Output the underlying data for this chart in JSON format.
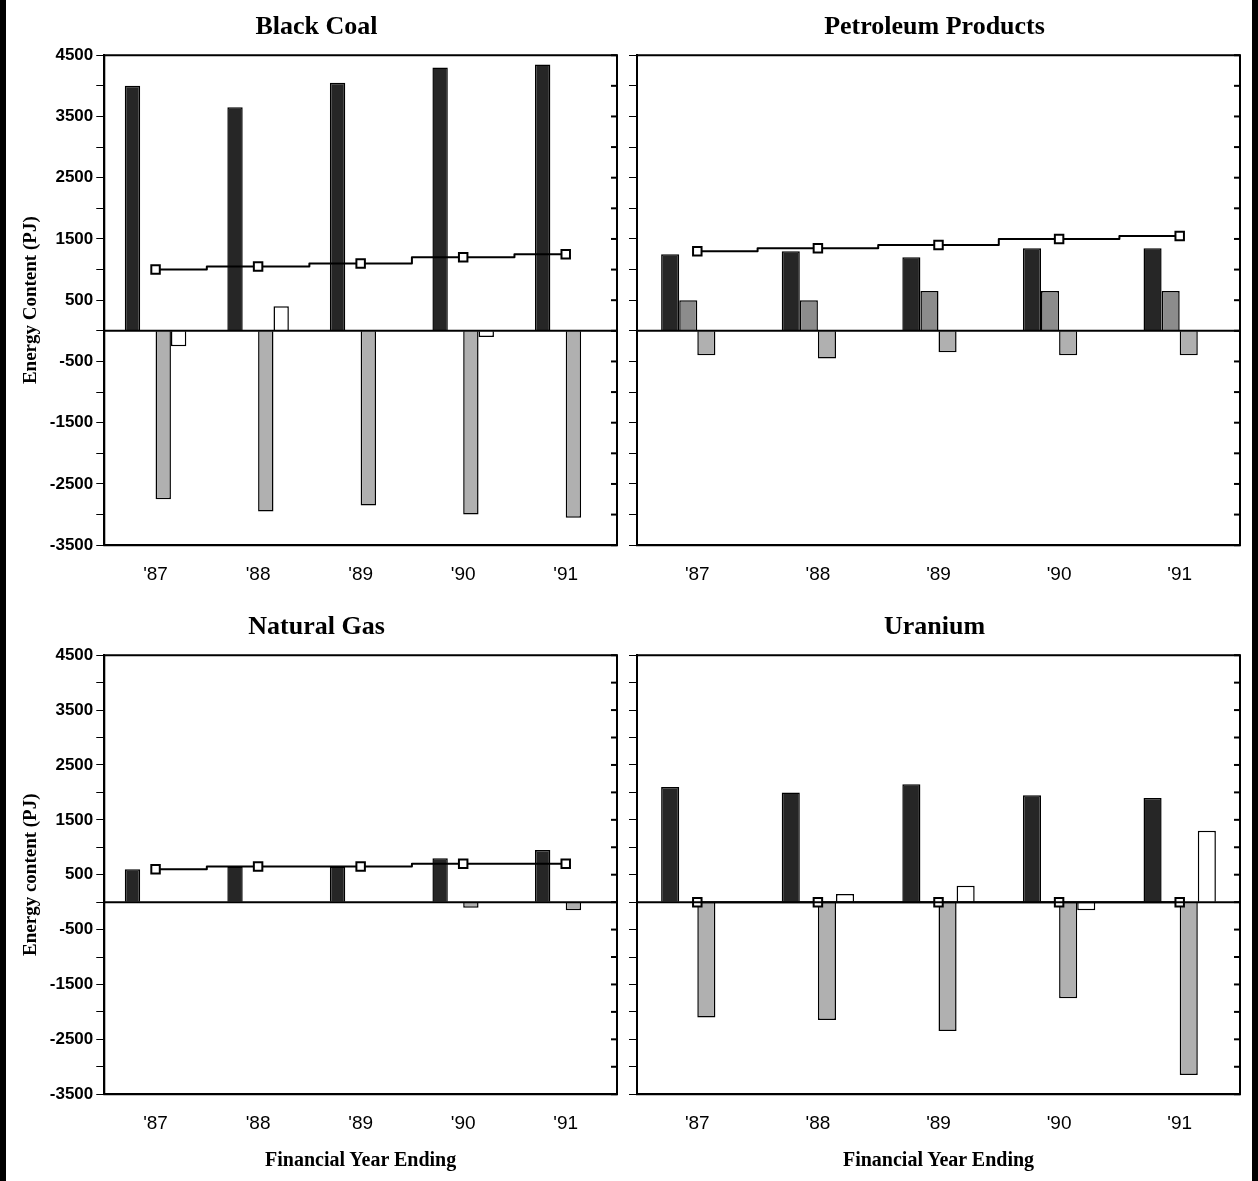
{
  "chart_data": [
    {
      "type": "bar",
      "title": "Black Coal",
      "ylabel": "Energy Content (PJ)",
      "categories": [
        "'87",
        "'88",
        "'89",
        "'90",
        "'91"
      ],
      "series": [
        {
          "color": "#262626",
          "values": [
            4000,
            3650,
            4050,
            4300,
            4350
          ]
        },
        {
          "color": "#8c8c8c",
          "values": [
            null,
            null,
            null,
            null,
            null
          ]
        },
        {
          "color": "#b0b0b0",
          "values": [
            -2750,
            -2950,
            -2850,
            -3000,
            -3050
          ]
        },
        {
          "color": "#ffffff",
          "values": [
            -250,
            400,
            null,
            -100,
            null
          ]
        },
        {
          "type": "step",
          "marker": "square",
          "color": "#000000",
          "values": [
            1000,
            1050,
            1100,
            1200,
            1250
          ]
        }
      ],
      "ylim": [
        -3500,
        4500
      ],
      "yticks": [
        4500,
        {
          "value": 4000,
          "label": null
        },
        3500,
        {
          "value": 3000,
          "label": null
        },
        2500,
        {
          "value": 2000,
          "label": null
        },
        1500,
        {
          "value": 1000,
          "label": null
        },
        500,
        {
          "value": 0,
          "label": null
        },
        -500,
        {
          "value": -1000,
          "label": null
        },
        -1500,
        {
          "value": -2000,
          "label": null
        },
        -2500,
        {
          "value": -3000,
          "label": null
        },
        -3500
      ],
      "ref_lines": [
        {
          "axis": "y",
          "value": 0
        }
      ]
    },
    {
      "type": "bar",
      "title": "Petroleum Products",
      "categories": [
        "'87",
        "'88",
        "'89",
        "'90",
        "'91"
      ],
      "series": [
        {
          "color": "#262626",
          "values": [
            1250,
            1300,
            1200,
            1350,
            1350
          ]
        },
        {
          "color": "#8c8c8c",
          "values": [
            500,
            500,
            650,
            650,
            650
          ]
        },
        {
          "color": "#b0b0b0",
          "values": [
            -400,
            -450,
            -350,
            -400,
            -400
          ]
        },
        {
          "color": "#ffffff",
          "values": [
            null,
            null,
            null,
            null,
            null
          ]
        },
        {
          "type": "step",
          "marker": "square",
          "color": "#000000",
          "values": [
            1300,
            1350,
            1400,
            1500,
            1550
          ]
        }
      ],
      "ylim": [
        -3500,
        4500
      ],
      "yticks": [
        4500,
        {
          "value": 4000,
          "label": null
        },
        3500,
        {
          "value": 3000,
          "label": null
        },
        2500,
        {
          "value": 2000,
          "label": null
        },
        1500,
        {
          "value": 1000,
          "label": null
        },
        500,
        {
          "value": 0,
          "label": null
        },
        -500,
        {
          "value": -1000,
          "label": null
        },
        -1500,
        {
          "value": -2000,
          "label": null
        },
        -2500,
        {
          "value": -3000,
          "label": null
        },
        -3500
      ],
      "tick_labels": "x",
      "ref_lines": [
        {
          "axis": "y",
          "value": 0
        }
      ]
    },
    {
      "type": "bar",
      "title": "Natural Gas",
      "ylabel": "Energy content (PJ)",
      "xlabel": "Financial Year Ending",
      "categories": [
        "'87",
        "'88",
        "'89",
        "'90",
        "'91"
      ],
      "series": [
        {
          "color": "#262626",
          "values": [
            600,
            650,
            650,
            800,
            950
          ]
        },
        {
          "color": "#8c8c8c",
          "values": [
            null,
            null,
            null,
            null,
            null
          ]
        },
        {
          "color": "#b0b0b0",
          "values": [
            null,
            null,
            null,
            -100,
            -150
          ]
        },
        {
          "color": "#ffffff",
          "values": [
            null,
            null,
            null,
            null,
            null
          ]
        },
        {
          "type": "step",
          "marker": "square",
          "color": "#000000",
          "values": [
            600,
            650,
            650,
            700,
            700
          ]
        }
      ],
      "ylim": [
        -3500,
        4500
      ],
      "yticks": [
        4500,
        {
          "value": 4000,
          "label": null
        },
        3500,
        {
          "value": 3000,
          "label": null
        },
        2500,
        {
          "value": 2000,
          "label": null
        },
        1500,
        {
          "value": 1000,
          "label": null
        },
        500,
        {
          "value": 0,
          "label": null
        },
        -500,
        {
          "value": -1000,
          "label": null
        },
        -1500,
        {
          "value": -2000,
          "label": null
        },
        -2500,
        {
          "value": -3000,
          "label": null
        },
        -3500
      ],
      "ref_lines": [
        {
          "axis": "y",
          "value": 0
        }
      ]
    },
    {
      "type": "bar",
      "title": "Uranium",
      "xlabel": "Financial Year Ending",
      "categories": [
        "'87",
        "'88",
        "'89",
        "'90",
        "'91"
      ],
      "series": [
        {
          "color": "#262626",
          "values": [
            2100,
            2000,
            2150,
            1950,
            1900
          ]
        },
        {
          "color": "#8c8c8c",
          "values": [
            null,
            null,
            null,
            null,
            null
          ]
        },
        {
          "color": "#b0b0b0",
          "values": [
            -2100,
            -2150,
            -2350,
            -1750,
            -3150
          ]
        },
        {
          "color": "#ffffff",
          "values": [
            null,
            150,
            300,
            -150,
            1300
          ]
        },
        {
          "type": "step",
          "marker": "square",
          "color": "#000000",
          "values": [
            0,
            0,
            0,
            0,
            0
          ]
        }
      ],
      "ylim": [
        -3500,
        4500
      ],
      "yticks": [
        4500,
        {
          "value": 4000,
          "label": null
        },
        3500,
        {
          "value": 3000,
          "label": null
        },
        2500,
        {
          "value": 2000,
          "label": null
        },
        1500,
        {
          "value": 1000,
          "label": null
        },
        500,
        {
          "value": 0,
          "label": null
        },
        -500,
        {
          "value": -1000,
          "label": null
        },
        -1500,
        {
          "value": -2000,
          "label": null
        },
        -2500,
        {
          "value": -3000,
          "label": null
        },
        -3500
      ],
      "tick_labels": "x",
      "ref_lines": [
        {
          "axis": "y",
          "value": 0
        }
      ]
    }
  ]
}
